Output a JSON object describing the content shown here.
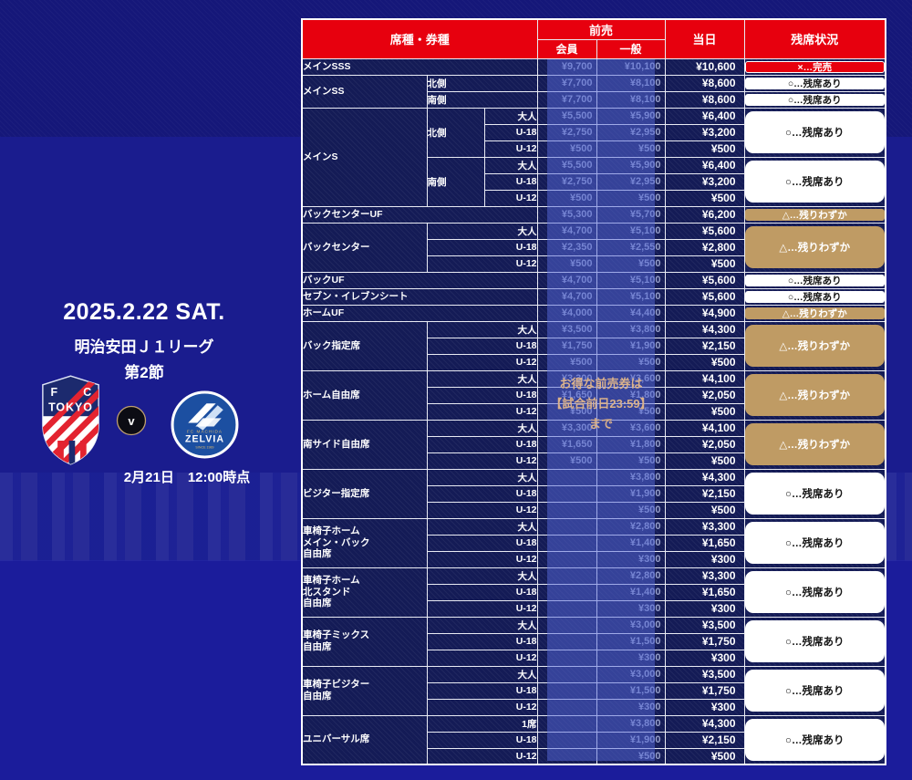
{
  "left_panel": {
    "date_title": "2025.2.22 SAT.",
    "league": "明治安田Ｊ１リーグ",
    "round": "第2節",
    "versus": "v",
    "home_team": {
      "initial_left": "F",
      "initial_right": "C",
      "wordmark": "TOKYO"
    },
    "away_team": {
      "club": "FC MACHIDA",
      "wordmark": "ZELVIA",
      "since": "SINCE 1989",
      "mark": "Z"
    },
    "as_of": "2月21日　12:00時点"
  },
  "note": {
    "lines": [
      "お得な前売券は",
      "【試合前日23:59】",
      "まで"
    ]
  },
  "table": {
    "header": {
      "seat_type": "席種・券種",
      "advance": "前売",
      "member": "会員",
      "general": "一般",
      "same_day": "当日",
      "availability": "残席状況"
    },
    "status_labels": {
      "soldout": "×…完売",
      "available": "○…残席あり",
      "few": "△…残りわずか"
    },
    "colors": {
      "header_red": "#e7000e",
      "soldout_red": "#e7000e",
      "few_tan": "#bf9b64",
      "available_white": "#ffffff",
      "row_navy": "#141b56",
      "promo_band_blue": "#5569dc",
      "promo_text_tan": "#dbb28b"
    },
    "groups": [
      {
        "name": "メインSSS",
        "layout": "single",
        "member": "¥9,700",
        "general": "¥10,100",
        "day": "¥10,600",
        "status": "soldout"
      },
      {
        "name": "メインSS",
        "layout": "sides",
        "sides": [
          {
            "name": "北側",
            "member": "¥7,700",
            "general": "¥8,100",
            "day": "¥8,600",
            "status": "available"
          },
          {
            "name": "南側",
            "member": "¥7,700",
            "general": "¥8,100",
            "day": "¥8,600",
            "status": "available"
          }
        ]
      },
      {
        "name": "メインS",
        "layout": "sides_ages",
        "sides": [
          {
            "name": "北側",
            "status": "available",
            "rows": [
              [
                "大人",
                "¥5,500",
                "¥5,900",
                "¥6,400"
              ],
              [
                "U-18",
                "¥2,750",
                "¥2,950",
                "¥3,200"
              ],
              [
                "U-12",
                "¥500",
                "¥500",
                "¥500"
              ]
            ]
          },
          {
            "name": "南側",
            "status": "available",
            "rows": [
              [
                "大人",
                "¥5,500",
                "¥5,900",
                "¥6,400"
              ],
              [
                "U-18",
                "¥2,750",
                "¥2,950",
                "¥3,200"
              ],
              [
                "U-12",
                "¥500",
                "¥500",
                "¥500"
              ]
            ]
          }
        ]
      },
      {
        "name": "バックセンターUF",
        "layout": "single",
        "member": "¥5,300",
        "general": "¥5,700",
        "day": "¥6,200",
        "status": "few"
      },
      {
        "name": "バックセンター",
        "layout": "ages",
        "status": "few",
        "rows": [
          [
            "大人",
            "¥4,700",
            "¥5,100",
            "¥5,600"
          ],
          [
            "U-18",
            "¥2,350",
            "¥2,550",
            "¥2,800"
          ],
          [
            "U-12",
            "¥500",
            "¥500",
            "¥500"
          ]
        ]
      },
      {
        "name": "バックUF",
        "layout": "single",
        "member": "¥4,700",
        "general": "¥5,100",
        "day": "¥5,600",
        "status": "available"
      },
      {
        "name": "セブン・イレブンシート",
        "layout": "single",
        "member": "¥4,700",
        "general": "¥5,100",
        "day": "¥5,600",
        "status": "available"
      },
      {
        "name": "ホームUF",
        "layout": "single",
        "member": "¥4,000",
        "general": "¥4,400",
        "day": "¥4,900",
        "status": "few"
      },
      {
        "name": "バック指定席",
        "layout": "ages",
        "status": "few",
        "rows": [
          [
            "大人",
            "¥3,500",
            "¥3,800",
            "¥4,300"
          ],
          [
            "U-18",
            "¥1,750",
            "¥1,900",
            "¥2,150"
          ],
          [
            "U-12",
            "¥500",
            "¥500",
            "¥500"
          ]
        ]
      },
      {
        "name": "ホーム自由席",
        "layout": "ages",
        "status": "few",
        "rows": [
          [
            "大人",
            "¥3,300",
            "¥3,600",
            "¥4,100"
          ],
          [
            "U-18",
            "¥1,650",
            "¥1,800",
            "¥2,050"
          ],
          [
            "U-12",
            "¥500",
            "¥500",
            "¥500"
          ]
        ]
      },
      {
        "name": "南サイド自由席",
        "layout": "ages",
        "status": "few",
        "rows": [
          [
            "大人",
            "¥3,300",
            "¥3,600",
            "¥4,100"
          ],
          [
            "U-18",
            "¥1,650",
            "¥1,800",
            "¥2,050"
          ],
          [
            "U-12",
            "¥500",
            "¥500",
            "¥500"
          ]
        ]
      },
      {
        "name": "ビジター指定席",
        "layout": "ages",
        "status": "available",
        "rows": [
          [
            "大人",
            "",
            "¥3,800",
            "¥4,300"
          ],
          [
            "U-18",
            "",
            "¥1,900",
            "¥2,150"
          ],
          [
            "U-12",
            "",
            "¥500",
            "¥500"
          ]
        ]
      },
      {
        "name": "車椅子ホーム\nメイン・バック\n自由席",
        "layout": "ages",
        "status": "available",
        "rows": [
          [
            "大人",
            "",
            "¥2,800",
            "¥3,300"
          ],
          [
            "U-18",
            "",
            "¥1,400",
            "¥1,650"
          ],
          [
            "U-12",
            "",
            "¥300",
            "¥300"
          ]
        ]
      },
      {
        "name": "車椅子ホーム\n北スタンド\n自由席",
        "layout": "ages",
        "status": "available",
        "rows": [
          [
            "大人",
            "",
            "¥2,800",
            "¥3,300"
          ],
          [
            "U-18",
            "",
            "¥1,400",
            "¥1,650"
          ],
          [
            "U-12",
            "",
            "¥300",
            "¥300"
          ]
        ]
      },
      {
        "name": "車椅子ミックス\n自由席",
        "layout": "ages",
        "status": "available",
        "rows": [
          [
            "大人",
            "",
            "¥3,000",
            "¥3,500"
          ],
          [
            "U-18",
            "",
            "¥1,500",
            "¥1,750"
          ],
          [
            "U-12",
            "",
            "¥300",
            "¥300"
          ]
        ]
      },
      {
        "name": "車椅子ビジター\n自由席",
        "layout": "ages",
        "status": "available",
        "rows": [
          [
            "大人",
            "",
            "¥3,000",
            "¥3,500"
          ],
          [
            "U-18",
            "",
            "¥1,500",
            "¥1,750"
          ],
          [
            "U-12",
            "",
            "¥300",
            "¥300"
          ]
        ]
      },
      {
        "name": "ユニバーサル席",
        "layout": "ages",
        "status": "available",
        "rows": [
          [
            "1席",
            "",
            "¥3,800",
            "¥4,300"
          ],
          [
            "U-18",
            "",
            "¥1,900",
            "¥2,150"
          ],
          [
            "U-12",
            "",
            "¥500",
            "¥500"
          ]
        ]
      }
    ]
  }
}
